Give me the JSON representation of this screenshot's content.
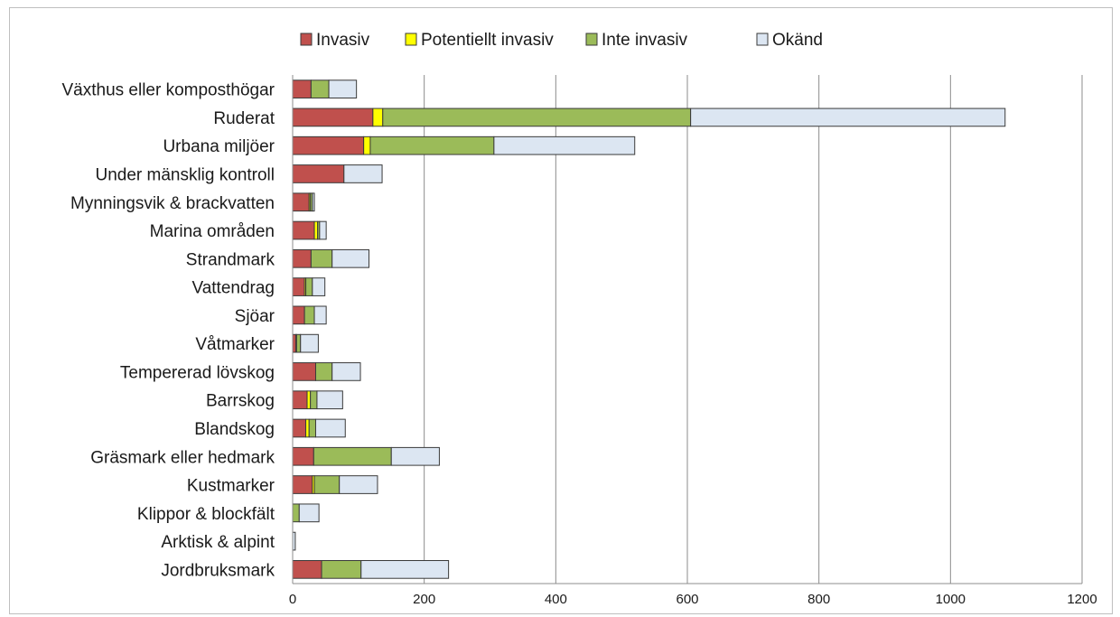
{
  "chart_data": {
    "type": "bar",
    "orientation": "horizontal",
    "stacked": true,
    "categories": [
      "Växthus eller komposthögar",
      "Ruderat",
      "Urbana miljöer",
      "Under mänsklig kontroll",
      "Mynningsvik & brackvatten",
      "Marina områden",
      "Strandmark",
      "Vattendrag",
      "Sjöar",
      "Våtmarker",
      "Tempererad lövskog",
      "Barrskog",
      "Blandskog",
      "Gräsmark eller hedmark",
      "Kustmarker",
      "Klippor & blockfält",
      "Arktisk & alpint",
      "Jordbruksmark"
    ],
    "series": [
      {
        "name": "Invasiv",
        "color": "#C0504D",
        "values": [
          28,
          122,
          108,
          78,
          25,
          33,
          28,
          18,
          18,
          5,
          35,
          22,
          20,
          32,
          30,
          0,
          0,
          44
        ]
      },
      {
        "name": "Potentiellt invasiv",
        "color": "#FFFF00",
        "values": [
          0,
          15,
          10,
          0,
          2,
          5,
          0,
          2,
          0,
          1,
          0,
          5,
          5,
          0,
          3,
          0,
          0,
          0
        ]
      },
      {
        "name": "Inte invasiv",
        "color": "#9BBB59",
        "values": [
          27,
          468,
          188,
          0,
          3,
          3,
          32,
          10,
          15,
          6,
          25,
          10,
          10,
          118,
          38,
          10,
          0,
          60
        ]
      },
      {
        "name": "Okänd",
        "color": "#DCE6F2",
        "values": [
          42,
          478,
          214,
          58,
          3,
          10,
          56,
          19,
          18,
          27,
          43,
          39,
          45,
          73,
          58,
          30,
          4,
          133
        ]
      }
    ],
    "xlim": [
      0,
      1200
    ],
    "xticks": [
      "0",
      "200",
      "400",
      "600",
      "800",
      "1000",
      "1200"
    ],
    "xtick_values": [
      0,
      200,
      400,
      600,
      800,
      1000,
      1200
    ],
    "grid": "vertical",
    "legend_position": "top",
    "title": "",
    "xlabel": "",
    "ylabel": ""
  }
}
